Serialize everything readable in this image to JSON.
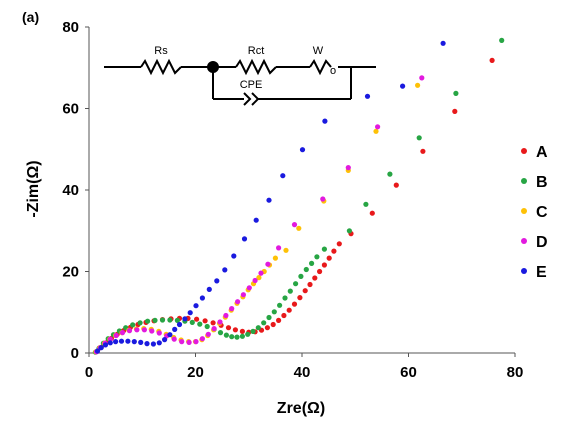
{
  "panel_label": "(a)",
  "circuit": {
    "labels": [
      "Rs",
      "Rct",
      "W",
      "CPE"
    ]
  },
  "chart_data": {
    "type": "scatter",
    "title": "",
    "xlabel": "Zre(Ω)",
    "ylabel": "-Zim(Ω)",
    "xlim": [
      0,
      80
    ],
    "ylim": [
      0,
      80
    ],
    "xticks": [
      0,
      20,
      40,
      60,
      80
    ],
    "yticks": [
      0,
      20,
      40,
      60,
      80
    ],
    "grid": false,
    "legend_position": "right",
    "series": [
      {
        "name": "A",
        "color": "#e8191b",
        "points": [
          [
            1.5,
            0.4
          ],
          [
            2.3,
            1.4
          ],
          [
            3.2,
            2.5
          ],
          [
            4.2,
            3.6
          ],
          [
            5.3,
            4.6
          ],
          [
            6.5,
            5.5
          ],
          [
            7.8,
            6.3
          ],
          [
            9.2,
            7.0
          ],
          [
            10.7,
            7.5
          ],
          [
            12.2,
            7.9
          ],
          [
            13.8,
            8.2
          ],
          [
            15.4,
            8.4
          ],
          [
            17.0,
            8.5
          ],
          [
            18.6,
            8.5
          ],
          [
            20.2,
            8.3
          ],
          [
            21.8,
            7.9
          ],
          [
            23.3,
            7.4
          ],
          [
            24.8,
            6.8
          ],
          [
            26.2,
            6.2
          ],
          [
            27.5,
            5.7
          ],
          [
            28.8,
            5.3
          ],
          [
            30.0,
            5.1
          ],
          [
            31.2,
            5.2
          ],
          [
            32.4,
            5.6
          ],
          [
            33.5,
            6.2
          ],
          [
            34.6,
            7.0
          ],
          [
            35.6,
            8.0
          ],
          [
            36.6,
            9.2
          ],
          [
            37.6,
            10.5
          ],
          [
            38.6,
            12.0
          ],
          [
            39.6,
            13.6
          ],
          [
            40.6,
            15.3
          ],
          [
            41.5,
            16.8
          ],
          [
            42.4,
            18.4
          ],
          [
            43.3,
            20.0
          ],
          [
            44.2,
            21.6
          ],
          [
            45.1,
            23.3
          ],
          [
            46.0,
            25.0
          ],
          [
            47.0,
            26.8
          ],
          [
            49.2,
            29.3
          ],
          [
            53.2,
            34.3
          ],
          [
            57.7,
            41.2
          ],
          [
            62.7,
            49.5
          ],
          [
            68.7,
            59.3
          ],
          [
            75.7,
            71.8
          ]
        ]
      },
      {
        "name": "B",
        "color": "#27a544",
        "points": [
          [
            1.2,
            0.2
          ],
          [
            1.9,
            1.2
          ],
          [
            2.7,
            2.4
          ],
          [
            3.6,
            3.5
          ],
          [
            4.6,
            4.5
          ],
          [
            5.7,
            5.4
          ],
          [
            6.9,
            6.2
          ],
          [
            8.2,
            6.9
          ],
          [
            9.6,
            7.4
          ],
          [
            11.0,
            7.8
          ],
          [
            12.4,
            8.0
          ],
          [
            13.8,
            8.1
          ],
          [
            15.2,
            8.1
          ],
          [
            16.6,
            8.0
          ],
          [
            18.0,
            7.8
          ],
          [
            19.4,
            7.5
          ],
          [
            20.8,
            7.1
          ],
          [
            22.2,
            6.5
          ],
          [
            23.5,
            5.8
          ],
          [
            24.7,
            5.0
          ],
          [
            25.8,
            4.4
          ],
          [
            26.8,
            4.0
          ],
          [
            27.8,
            3.9
          ],
          [
            28.8,
            4.1
          ],
          [
            29.8,
            4.6
          ],
          [
            30.8,
            5.3
          ],
          [
            31.8,
            6.2
          ],
          [
            32.8,
            7.4
          ],
          [
            33.8,
            8.7
          ],
          [
            34.8,
            10.1
          ],
          [
            35.8,
            11.7
          ],
          [
            36.8,
            13.5
          ],
          [
            37.8,
            15.2
          ],
          [
            38.8,
            17.0
          ],
          [
            39.8,
            18.8
          ],
          [
            40.8,
            20.5
          ],
          [
            41.8,
            22.0
          ],
          [
            42.8,
            23.6
          ],
          [
            44.2,
            25.5
          ],
          [
            48.9,
            30.0
          ],
          [
            52.0,
            36.5
          ],
          [
            56.5,
            43.9
          ],
          [
            62.0,
            52.8
          ],
          [
            68.9,
            63.7
          ],
          [
            77.5,
            76.7
          ]
        ]
      },
      {
        "name": "C",
        "color": "#fec106",
        "points": [
          [
            1.3,
            0.3
          ],
          [
            2.0,
            1.3
          ],
          [
            2.9,
            2.4
          ],
          [
            3.9,
            3.4
          ],
          [
            5.0,
            4.3
          ],
          [
            6.2,
            5.0
          ],
          [
            7.5,
            5.6
          ],
          [
            8.9,
            5.9
          ],
          [
            10.3,
            6.0
          ],
          [
            11.7,
            5.8
          ],
          [
            13.1,
            5.3
          ],
          [
            14.5,
            4.6
          ],
          [
            15.9,
            3.8
          ],
          [
            17.3,
            3.2
          ],
          [
            18.7,
            2.8
          ],
          [
            20.0,
            2.8
          ],
          [
            21.2,
            3.3
          ],
          [
            22.3,
            4.3
          ],
          [
            23.4,
            5.7
          ],
          [
            24.5,
            7.3
          ],
          [
            25.6,
            8.8
          ],
          [
            26.7,
            10.5
          ],
          [
            27.8,
            12.2
          ],
          [
            28.9,
            13.8
          ],
          [
            29.9,
            15.5
          ],
          [
            30.9,
            17.0
          ],
          [
            31.9,
            18.5
          ],
          [
            32.9,
            20.0
          ],
          [
            33.9,
            21.6
          ],
          [
            35.0,
            23.3
          ],
          [
            37.0,
            25.2
          ],
          [
            39.4,
            30.6
          ],
          [
            44.1,
            37.3
          ],
          [
            48.7,
            44.8
          ],
          [
            53.9,
            54.4
          ],
          [
            61.7,
            65.7
          ]
        ]
      },
      {
        "name": "D",
        "color": "#e21adf",
        "points": [
          [
            1.4,
            0.3
          ],
          [
            2.1,
            1.3
          ],
          [
            3.0,
            2.4
          ],
          [
            4.0,
            3.4
          ],
          [
            5.1,
            4.3
          ],
          [
            6.3,
            5.0
          ],
          [
            7.6,
            5.5
          ],
          [
            9.0,
            5.7
          ],
          [
            10.4,
            5.7
          ],
          [
            11.8,
            5.4
          ],
          [
            13.2,
            4.9
          ],
          [
            14.6,
            4.2
          ],
          [
            16.0,
            3.4
          ],
          [
            17.4,
            2.8
          ],
          [
            18.8,
            2.6
          ],
          [
            20.1,
            2.8
          ],
          [
            21.3,
            3.5
          ],
          [
            22.4,
            4.6
          ],
          [
            23.5,
            6.0
          ],
          [
            24.6,
            7.6
          ],
          [
            25.7,
            9.2
          ],
          [
            26.8,
            10.9
          ],
          [
            27.9,
            12.6
          ],
          [
            29.0,
            14.3
          ],
          [
            30.1,
            16.0
          ],
          [
            31.2,
            17.8
          ],
          [
            32.3,
            19.6
          ],
          [
            33.6,
            21.8
          ],
          [
            35.6,
            25.8
          ],
          [
            38.6,
            31.5
          ],
          [
            43.9,
            37.8
          ],
          [
            48.7,
            45.5
          ],
          [
            54.2,
            55.5
          ],
          [
            62.5,
            67.5
          ]
        ]
      },
      {
        "name": "E",
        "color": "#1a1adf",
        "points": [
          [
            1.6,
            0.5
          ],
          [
            2.3,
            1.3
          ],
          [
            3.1,
            2.0
          ],
          [
            4.0,
            2.5
          ],
          [
            5.0,
            2.8
          ],
          [
            6.1,
            2.9
          ],
          [
            7.3,
            2.9
          ],
          [
            8.5,
            2.8
          ],
          [
            9.7,
            2.6
          ],
          [
            10.9,
            2.3
          ],
          [
            12.1,
            2.2
          ],
          [
            13.2,
            2.5
          ],
          [
            14.2,
            3.3
          ],
          [
            15.2,
            4.5
          ],
          [
            16.1,
            5.8
          ],
          [
            17.0,
            7.0
          ],
          [
            18.0,
            8.4
          ],
          [
            19.0,
            9.9
          ],
          [
            20.1,
            11.6
          ],
          [
            21.3,
            13.5
          ],
          [
            22.6,
            15.6
          ],
          [
            24.0,
            17.7
          ],
          [
            25.5,
            20.4
          ],
          [
            27.2,
            23.8
          ],
          [
            29.2,
            28.0
          ],
          [
            31.4,
            32.6
          ],
          [
            33.8,
            37.5
          ],
          [
            36.4,
            43.5
          ],
          [
            40.1,
            49.9
          ],
          [
            44.3,
            56.9
          ],
          [
            52.3,
            63.0
          ],
          [
            58.9,
            65.5
          ],
          [
            66.5,
            76.0
          ]
        ]
      }
    ]
  }
}
